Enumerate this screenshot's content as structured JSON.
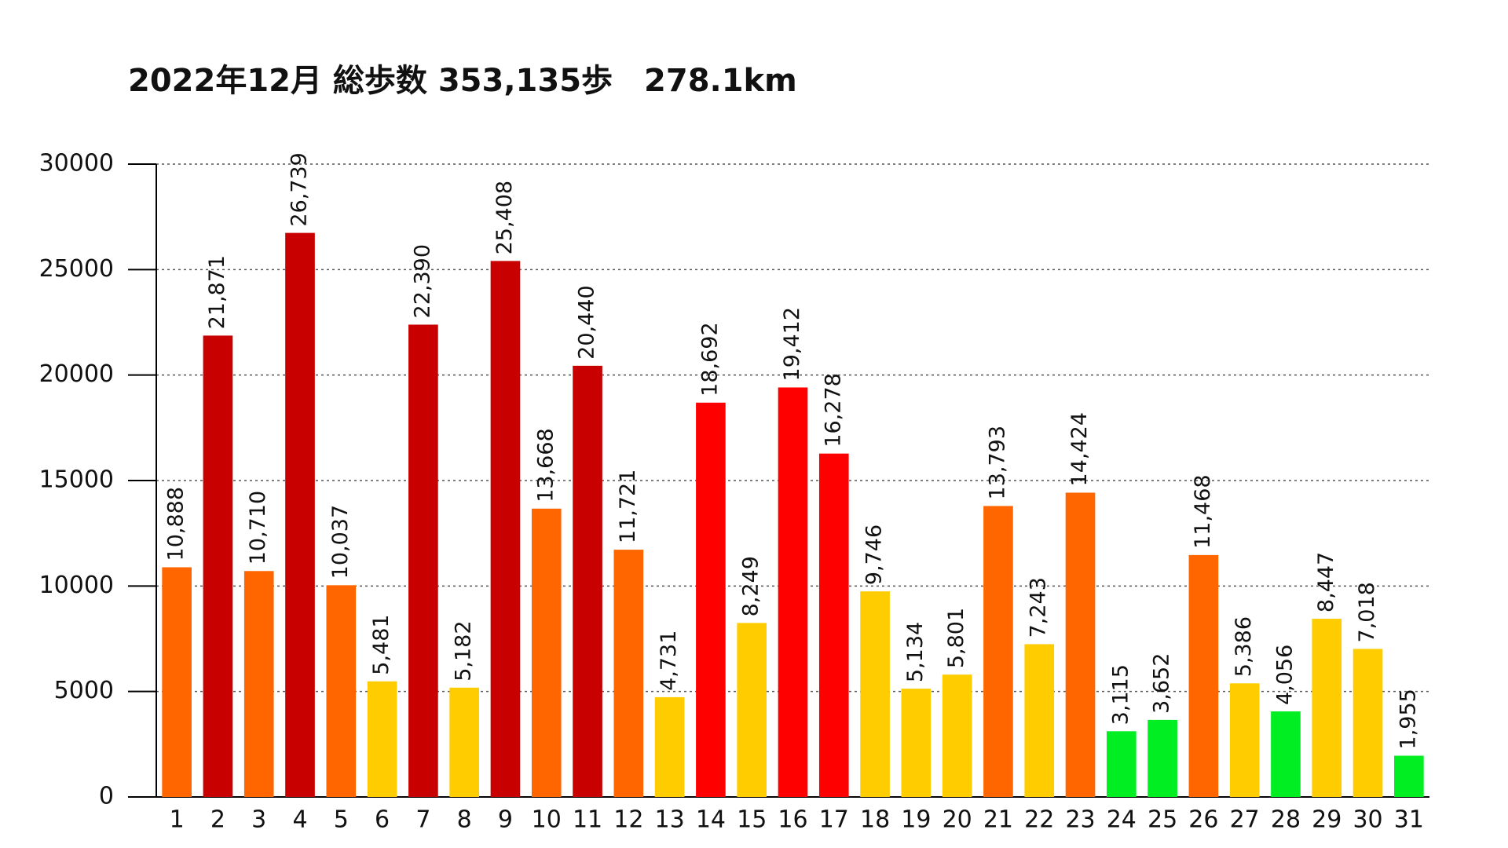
{
  "chart_data": {
    "type": "bar",
    "title": "2022年12月 総歩数 353,135歩　278.1km",
    "categories": [
      "1",
      "2",
      "3",
      "4",
      "5",
      "6",
      "7",
      "8",
      "9",
      "10",
      "11",
      "12",
      "13",
      "14",
      "15",
      "16",
      "17",
      "18",
      "19",
      "20",
      "21",
      "22",
      "23",
      "24",
      "25",
      "26",
      "27",
      "28",
      "29",
      "30",
      "31"
    ],
    "values": [
      10888,
      21871,
      10710,
      26739,
      10037,
      5481,
      22390,
      5182,
      25408,
      13668,
      20440,
      11721,
      4731,
      18692,
      8249,
      19412,
      16278,
      9746,
      5134,
      5801,
      13793,
      7243,
      14424,
      3115,
      3652,
      11468,
      5386,
      4056,
      8447,
      7018,
      1955
    ],
    "value_labels": [
      "10,888",
      "21,871",
      "10,710",
      "26,739",
      "10,037",
      "5,481",
      "22,390",
      "5,182",
      "25,408",
      "13,668",
      "20,440",
      "11,721",
      "4,731",
      "18,692",
      "8,249",
      "19,412",
      "16,278",
      "9,746",
      "5,134",
      "5,801",
      "13,793",
      "7,243",
      "14,424",
      "3,115",
      "3,652",
      "11,468",
      "5,386",
      "4,056",
      "8,447",
      "7,018",
      "1,955"
    ],
    "colors": [
      "#ff6600",
      "#c80000",
      "#ff6600",
      "#c80000",
      "#ff6600",
      "#ffcc00",
      "#c80000",
      "#ffcc00",
      "#c80000",
      "#ff6600",
      "#c80000",
      "#ff6600",
      "#ffcc00",
      "#ff0000",
      "#ffcc00",
      "#ff0000",
      "#ff0000",
      "#ffcc00",
      "#ffcc00",
      "#ffcc00",
      "#ff6600",
      "#ffcc00",
      "#ff6600",
      "#00ee22",
      "#00ee22",
      "#ff6600",
      "#ffcc00",
      "#00ee22",
      "#ffcc00",
      "#ffcc00",
      "#00ee22"
    ],
    "ylim": [
      0,
      30000
    ],
    "yticks": [
      0,
      5000,
      10000,
      15000,
      20000,
      25000,
      30000
    ],
    "grid": true
  }
}
